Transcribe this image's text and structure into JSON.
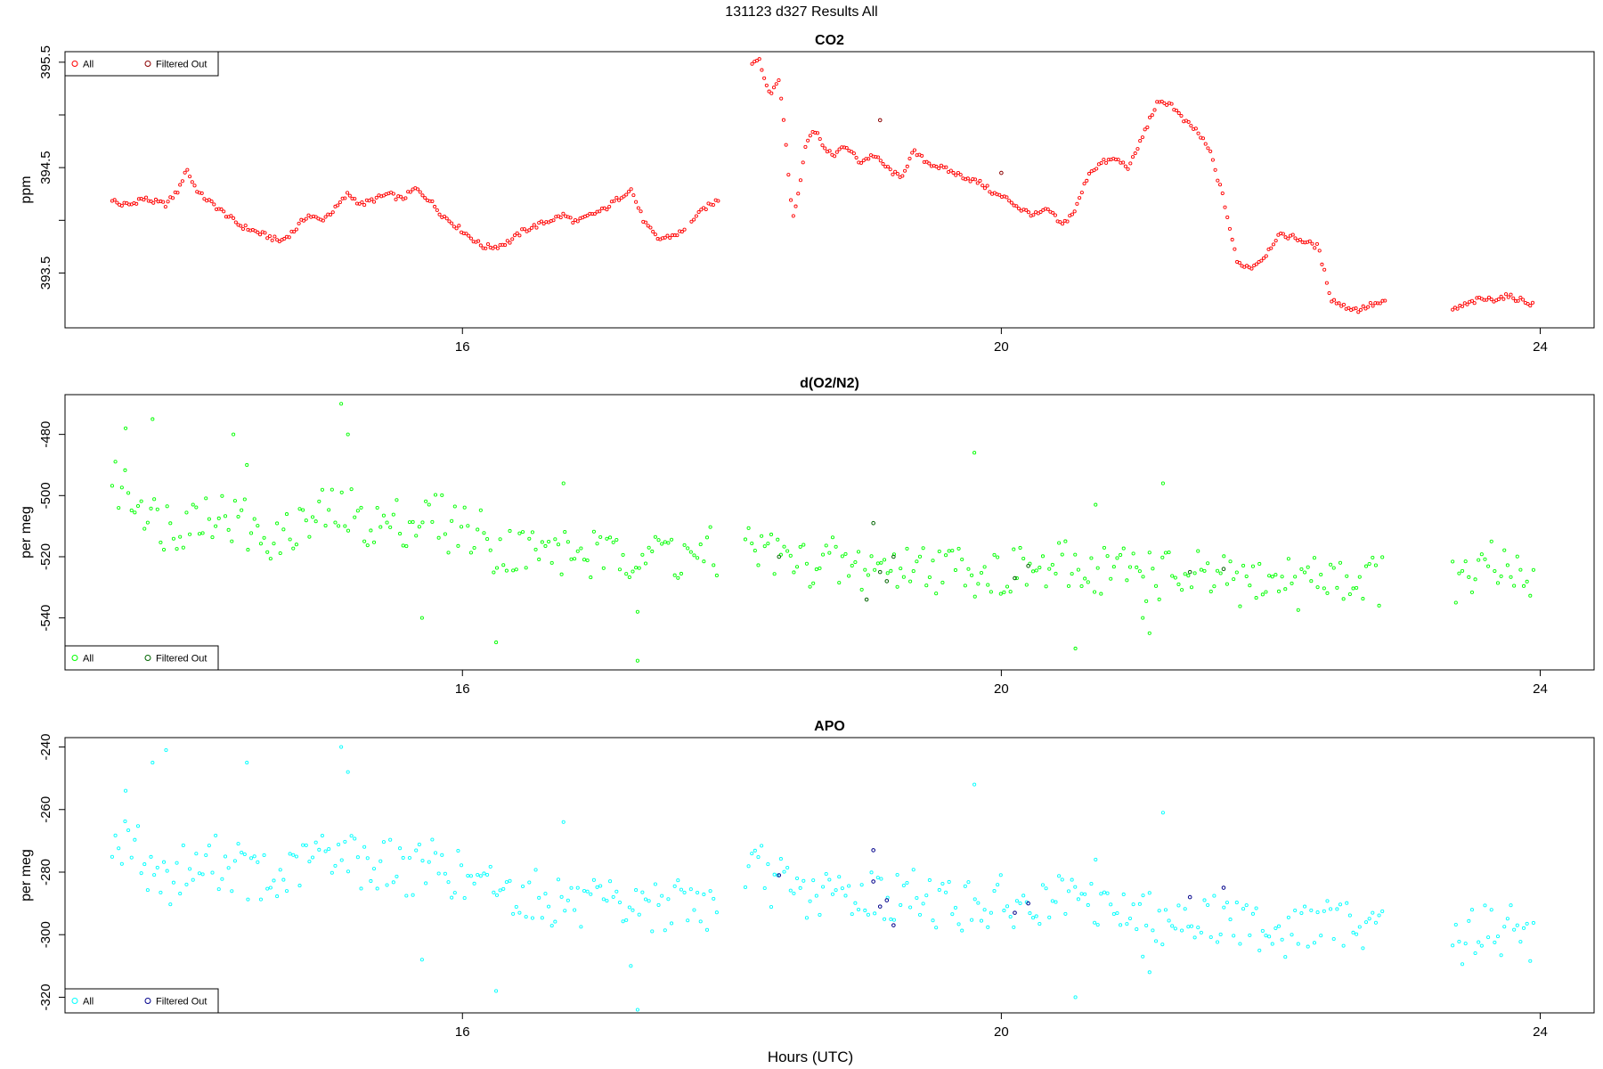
{
  "page_title": "131123   d327   Results All",
  "xlabel": "Hours (UTC)",
  "chart_data": [
    {
      "type": "scatter",
      "title": "CO2",
      "ylabel": "ppm",
      "xlim": [
        13.05,
        24.4
      ],
      "ylim": [
        392.98,
        395.6
      ],
      "x_ticks": [
        16,
        20,
        24
      ],
      "y_ticks": [
        393.5,
        394.0,
        394.5,
        395.0,
        395.5
      ],
      "y_tick_labels": [
        "393.5",
        "",
        "394.5",
        "",
        "395.5"
      ],
      "legend": {
        "position": "top-left",
        "entries": [
          "All",
          "Filtered Out"
        ]
      },
      "series": [
        {
          "name": "All",
          "color": "#ff0000",
          "segments": [
            {
              "x": [
                13.4,
                13.45,
                13.5,
                13.55,
                13.6,
                13.65,
                13.7,
                13.8,
                13.9,
                13.95,
                14.0,
                14.05,
                14.1,
                14.15,
                14.2,
                14.25,
                14.3,
                14.35,
                14.45,
                14.55,
                14.65,
                14.75,
                14.85,
                14.95,
                15.05,
                15.15,
                15.25,
                15.35,
                15.45,
                15.55,
                15.65,
                15.75,
                15.85,
                15.95,
                16.05,
                16.15,
                16.25,
                16.35,
                16.45,
                16.55,
                16.65,
                16.75,
                16.85,
                16.95,
                17.05,
                17.15,
                17.25,
                17.35,
                17.45,
                17.55,
                17.65
              ],
              "y": [
                394.2,
                394.15,
                394.15,
                394.15,
                394.2,
                394.2,
                394.18,
                394.15,
                394.3,
                394.5,
                394.35,
                394.25,
                394.2,
                394.15,
                394.1,
                394.05,
                394.0,
                393.95,
                393.9,
                393.85,
                393.8,
                393.9,
                394.05,
                394.0,
                394.1,
                394.25,
                394.15,
                394.2,
                394.25,
                394.2,
                394.3,
                394.2,
                394.05,
                393.95,
                393.85,
                393.75,
                393.75,
                393.8,
                393.9,
                393.95,
                394.0,
                394.05,
                393.98,
                394.05,
                394.1,
                394.2,
                394.3,
                393.98,
                393.82,
                393.85,
                393.9
              ]
            },
            {
              "x": [
                17.7,
                17.75,
                17.8,
                17.85,
                17.9
              ],
              "y": [
                394.0,
                394.05,
                394.12,
                394.15,
                394.2
              ]
            },
            {
              "x": [
                18.15,
                18.2,
                18.25,
                18.3,
                18.35,
                18.4,
                18.45,
                18.5,
                18.55,
                18.6,
                18.65,
                18.7,
                18.75,
                18.85,
                18.95,
                19.05,
                19.15,
                19.25,
                19.35,
                19.45,
                19.55,
                19.65,
                19.75,
                19.85,
                19.95,
                20.05,
                20.15,
                20.25,
                20.35,
                20.45,
                20.55,
                20.65,
                20.75,
                20.85,
                20.95,
                21.05,
                21.15,
                21.25,
                21.35,
                21.45,
                21.55,
                21.65,
                21.75,
                21.85,
                21.95,
                22.05,
                22.15,
                22.25,
                22.35,
                22.45,
                22.55,
                22.65,
                22.75,
                22.85
              ],
              "y": [
                395.5,
                395.55,
                395.3,
                395.2,
                395.35,
                394.75,
                394.0,
                394.3,
                394.75,
                394.85,
                394.8,
                394.65,
                394.62,
                394.7,
                394.55,
                394.62,
                394.5,
                394.4,
                394.65,
                394.55,
                394.5,
                394.45,
                394.4,
                394.35,
                394.25,
                394.2,
                394.1,
                394.05,
                394.1,
                393.95,
                394.1,
                394.45,
                394.55,
                394.58,
                394.5,
                394.8,
                395.1,
                395.12,
                394.95,
                394.85,
                394.65,
                394.2,
                393.6,
                393.55,
                393.65,
                393.85,
                393.85,
                393.8,
                393.75,
                393.25,
                393.18,
                393.15,
                393.2,
                393.22
              ]
            },
            {
              "x": [
                23.35,
                23.45,
                23.55,
                23.65,
                23.75,
                23.85,
                23.95
              ],
              "y": [
                393.15,
                393.2,
                393.25,
                393.25,
                393.28,
                393.25,
                393.2
              ]
            }
          ]
        },
        {
          "name": "Filtered Out",
          "color": "#8b0000",
          "x": [
            19.1,
            20.0
          ],
          "y": [
            394.95,
            394.45
          ]
        }
      ]
    },
    {
      "type": "scatter",
      "title": "d(O2/N2)",
      "ylabel": "per meg",
      "xlim": [
        13.05,
        24.4
      ],
      "ylim": [
        -557,
        -467
      ],
      "x_ticks": [
        16,
        20,
        24
      ],
      "y_ticks": [
        -540,
        -520,
        -500,
        -480
      ],
      "y_tick_labels": [
        "-540",
        "-520",
        "-500",
        "-480"
      ],
      "legend": {
        "position": "bottom-left",
        "entries": [
          "All",
          "Filtered Out"
        ]
      },
      "series": [
        {
          "name": "All",
          "color": "#00ff00",
          "center_segments": [
            {
              "x": [
                13.4,
                13.8,
                14.2,
                14.6,
                15.0,
                15.4,
                15.8,
                16.2,
                16.6,
                17.0,
                17.4,
                17.9
              ],
              "y": [
                -495,
                -510,
                -505,
                -515,
                -505,
                -510,
                -508,
                -515,
                -518,
                -520,
                -518,
                -520
              ]
            },
            {
              "x": [
                18.1,
                18.5,
                19.0,
                19.5,
                20.0,
                20.5,
                21.0,
                21.5,
                22.0,
                22.5,
                22.85
              ],
              "y": [
                -515,
                -522,
                -523,
                -522,
                -525,
                -524,
                -525,
                -528,
                -528,
                -527,
                -526
              ]
            },
            {
              "x": [
                23.35,
                23.65,
                23.95
              ],
              "y": [
                -528,
                -524,
                -528
              ]
            }
          ],
          "spread": 8,
          "outliers": {
            "x": [
              13.5,
              13.7,
              14.3,
              14.4,
              15.1,
              15.15,
              15.7,
              16.25,
              16.75,
              17.3,
              17.3,
              19.8,
              20.55,
              20.7,
              21.1,
              21.2,
              21.05
            ],
            "y": [
              -478,
              -475,
              -480,
              -490,
              -470,
              -480,
              -540,
              -548,
              -496,
              -554,
              -538,
              -486,
              -550,
              -503,
              -545,
              -496,
              -540
            ]
          }
        }
      ],
      "filtered": {
        "name": "Filtered Out",
        "color": "#006400",
        "x": [
          18.35,
          19.0,
          19.05,
          19.1,
          19.15,
          19.2,
          20.1,
          20.2,
          21.4,
          21.65
        ],
        "y": [
          -520,
          -534,
          -509,
          -525,
          -528,
          -520,
          -527,
          -523,
          -525,
          -524
        ]
      }
    },
    {
      "type": "scatter",
      "title": "APO",
      "ylabel": "per meg",
      "xlim": [
        13.05,
        24.4
      ],
      "ylim": [
        -325,
        -237
      ],
      "x_ticks": [
        16,
        20,
        24
      ],
      "y_ticks": [
        -320,
        -300,
        -280,
        -260,
        -240
      ],
      "y_tick_labels": [
        "-320",
        "-300",
        "-280",
        "-260",
        "-240"
      ],
      "legend": {
        "position": "bottom-left",
        "entries": [
          "All",
          "Filtered Out"
        ]
      },
      "series": [
        {
          "name": "All",
          "color": "#00ffff",
          "center_segments": [
            {
              "x": [
                13.4,
                13.8,
                14.2,
                14.6,
                15.0,
                15.4,
                15.8,
                16.2,
                16.6,
                17.0,
                17.4,
                17.9
              ],
              "y": [
                -268,
                -282,
                -276,
                -285,
                -272,
                -278,
                -278,
                -285,
                -288,
                -292,
                -290,
                -291
              ]
            },
            {
              "x": [
                18.1,
                18.5,
                19.0,
                19.5,
                20.0,
                20.5,
                21.0,
                21.5,
                22.0,
                22.5,
                22.85
              ],
              "y": [
                -278,
                -287,
                -288,
                -289,
                -291,
                -290,
                -293,
                -295,
                -298,
                -297,
                -295
              ]
            },
            {
              "x": [
                23.35,
                23.65,
                23.95
              ],
              "y": [
                -303,
                -297,
                -302
              ]
            }
          ],
          "spread": 8,
          "outliers": {
            "x": [
              13.5,
              13.7,
              13.8,
              14.4,
              15.1,
              15.15,
              15.7,
              16.25,
              16.75,
              17.3,
              17.25,
              19.8,
              20.55,
              20.7,
              21.1,
              21.2,
              21.05
            ],
            "y": [
              -254,
              -245,
              -241,
              -245,
              -240,
              -248,
              -308,
              -318,
              -264,
              -324,
              -310,
              -252,
              -320,
              -276,
              -312,
              -261,
              -307
            ]
          }
        }
      ],
      "filtered": {
        "name": "Filtered Out",
        "color": "#00008b",
        "x": [
          18.35,
          19.05,
          19.1,
          19.15,
          19.2,
          19.05,
          20.1,
          20.2,
          21.4,
          21.65
        ],
        "y": [
          -281,
          -273,
          -291,
          -289,
          -297,
          -283,
          -293,
          -290,
          -288,
          -285
        ]
      }
    }
  ]
}
